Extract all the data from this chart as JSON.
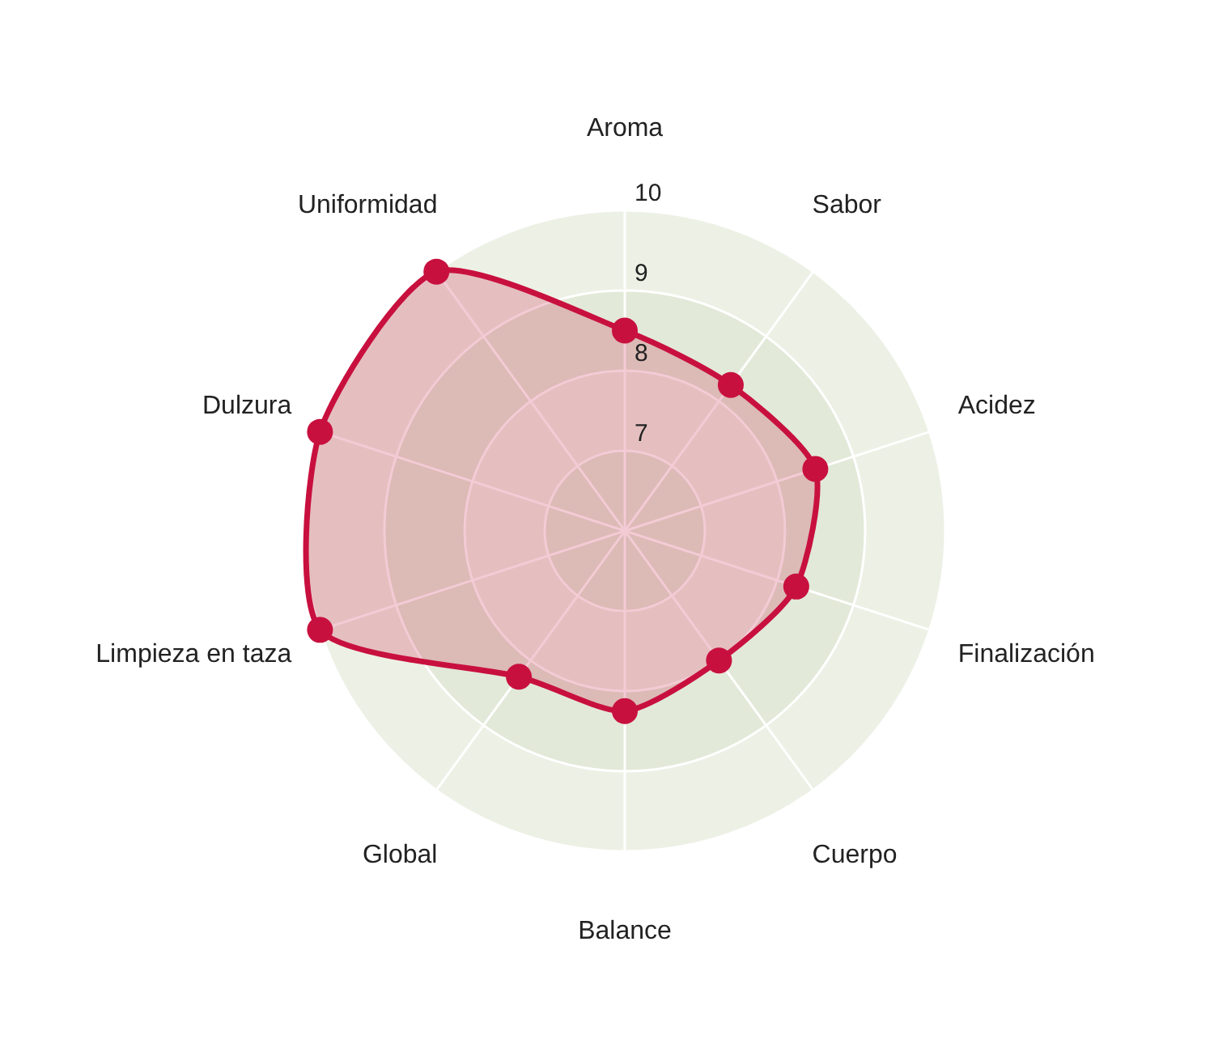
{
  "chart_data": {
    "type": "radar",
    "categories": [
      "Aroma",
      "Sabor",
      "Acidez",
      "Finalización",
      "Cuerpo",
      "Balance",
      "Global",
      "Limpieza en taza",
      "Dulzura",
      "Uniformidad"
    ],
    "series": [
      {
        "color": "#c8103e",
        "values": [
          8.5,
          8.25,
          8.5,
          8.25,
          8,
          8.25,
          8.25,
          10,
          10,
          10
        ]
      }
    ],
    "ylim": [
      6,
      10
    ],
    "yticks": [
      7,
      8,
      9,
      10
    ],
    "grid": true,
    "marker": "circle",
    "line_style": "solid"
  }
}
